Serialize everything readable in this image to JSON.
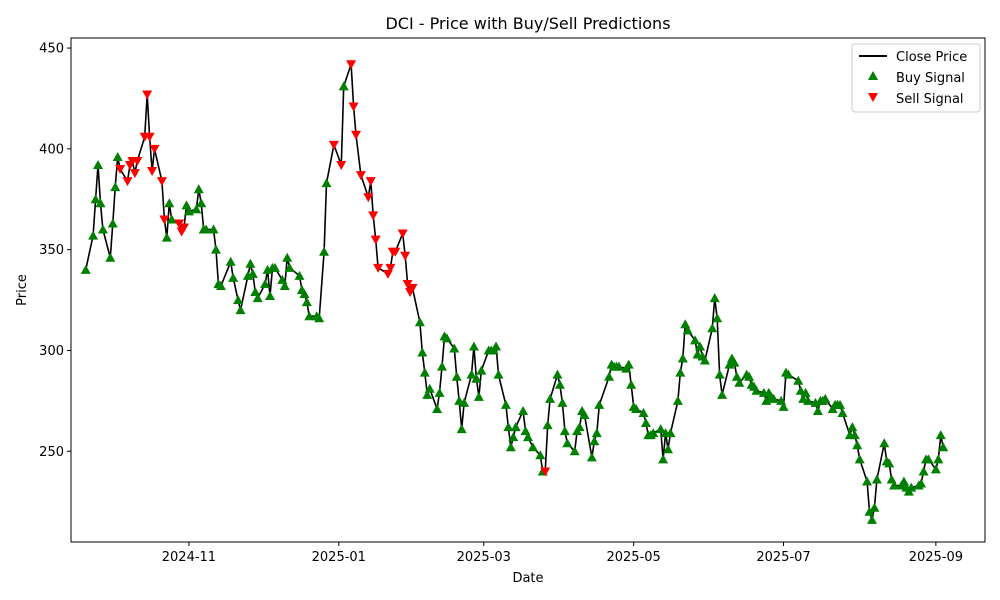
{
  "chart_data": {
    "type": "line",
    "title": "DCI - Price with Buy/Sell Predictions",
    "xlabel": "Date",
    "ylabel": "Price",
    "xlim": [
      "2024-09-14",
      "2025-09-21"
    ],
    "ylim": [
      205,
      455
    ],
    "x_ticks": [
      {
        "date": "2024-11-01",
        "label": "2024-11"
      },
      {
        "date": "2025-01-01",
        "label": "2025-01"
      },
      {
        "date": "2025-03-01",
        "label": "2025-03"
      },
      {
        "date": "2025-05-01",
        "label": "2025-05"
      },
      {
        "date": "2025-07-01",
        "label": "2025-07"
      },
      {
        "date": "2025-09-01",
        "label": "2025-09"
      }
    ],
    "y_ticks": [
      250,
      300,
      350,
      400,
      450
    ],
    "grid": false,
    "legend_position": "top-right",
    "series": [
      {
        "name": "Close Price",
        "kind": "line",
        "color": "#000000"
      },
      {
        "name": "Buy Signal",
        "kind": "marker",
        "marker": "triangle-up",
        "color": "#008000"
      },
      {
        "name": "Sell Signal",
        "kind": "marker",
        "marker": "triangle-down",
        "color": "#ff0000"
      }
    ],
    "points": [
      [
        "2024-09-20",
        340,
        "B"
      ],
      [
        "2024-09-23",
        357,
        "B"
      ],
      [
        "2024-09-24",
        375,
        "B"
      ],
      [
        "2024-09-25",
        392,
        "B"
      ],
      [
        "2024-09-26",
        373,
        "B"
      ],
      [
        "2024-09-27",
        360,
        "B"
      ],
      [
        "2024-09-30",
        346,
        "B"
      ],
      [
        "2024-10-01",
        363,
        "B"
      ],
      [
        "2024-10-02",
        381,
        "B"
      ],
      [
        "2024-10-03",
        396,
        "B"
      ],
      [
        "2024-10-04",
        390,
        "S"
      ],
      [
        "2024-10-07",
        384,
        "S"
      ],
      [
        "2024-10-08",
        392,
        "S"
      ],
      [
        "2024-10-09",
        394,
        "S"
      ],
      [
        "2024-10-10",
        388,
        "S"
      ],
      [
        "2024-10-11",
        394,
        "S"
      ],
      [
        "2024-10-14",
        406,
        "S"
      ],
      [
        "2024-10-15",
        427,
        "S"
      ],
      [
        "2024-10-16",
        406,
        "S"
      ],
      [
        "2024-10-17",
        389,
        "S"
      ],
      [
        "2024-10-18",
        400,
        "S"
      ],
      [
        "2024-10-21",
        384,
        "S"
      ],
      [
        "2024-10-22",
        365,
        "S"
      ],
      [
        "2024-10-23",
        356,
        "B"
      ],
      [
        "2024-10-24",
        373,
        "B"
      ],
      [
        "2024-10-25",
        365,
        "B"
      ],
      [
        "2024-10-28",
        363,
        "S"
      ],
      [
        "2024-10-29",
        359,
        "S"
      ],
      [
        "2024-10-30",
        361,
        "S"
      ],
      [
        "2024-10-31",
        372,
        "B"
      ],
      [
        "2024-11-01",
        369,
        "B"
      ],
      [
        "2024-11-04",
        370,
        "B"
      ],
      [
        "2024-11-05",
        380,
        "B"
      ],
      [
        "2024-11-06",
        373,
        "B"
      ],
      [
        "2024-11-07",
        360,
        "B"
      ],
      [
        "2024-11-08",
        360,
        "B"
      ],
      [
        "2024-11-11",
        360,
        "B"
      ],
      [
        "2024-11-12",
        350,
        "B"
      ],
      [
        "2024-11-13",
        333,
        "B"
      ],
      [
        "2024-11-14",
        332,
        "B"
      ],
      [
        "2024-11-18",
        344,
        "B"
      ],
      [
        "2024-11-19",
        336,
        "B"
      ],
      [
        "2024-11-21",
        325,
        "B"
      ],
      [
        "2024-11-22",
        320,
        "B"
      ],
      [
        "2024-11-25",
        337,
        "B"
      ],
      [
        "2024-11-26",
        343,
        "B"
      ],
      [
        "2024-11-27",
        338,
        "B"
      ],
      [
        "2024-11-28",
        329,
        "B"
      ],
      [
        "2024-11-29",
        326,
        "B"
      ],
      [
        "2024-12-02",
        333,
        "B"
      ],
      [
        "2024-12-03",
        340,
        "B"
      ],
      [
        "2024-12-04",
        327,
        "B"
      ],
      [
        "2024-12-05",
        341,
        "B"
      ],
      [
        "2024-12-06",
        341,
        "B"
      ],
      [
        "2024-12-09",
        335,
        "B"
      ],
      [
        "2024-12-10",
        332,
        "B"
      ],
      [
        "2024-12-11",
        346,
        "B"
      ],
      [
        "2024-12-12",
        341,
        "B"
      ],
      [
        "2024-12-16",
        337,
        "B"
      ],
      [
        "2024-12-17",
        330,
        "B"
      ],
      [
        "2024-12-18",
        328,
        "B"
      ],
      [
        "2024-12-19",
        324,
        "B"
      ],
      [
        "2024-12-20",
        317,
        "B"
      ],
      [
        "2024-12-23",
        317,
        "B"
      ],
      [
        "2024-12-24",
        316,
        "B"
      ],
      [
        "2024-12-26",
        349,
        "B"
      ],
      [
        "2024-12-27",
        383,
        "B"
      ],
      [
        "2024-12-30",
        402,
        "S"
      ],
      [
        "2025-01-02",
        392,
        "S"
      ],
      [
        "2025-01-03",
        431,
        "B"
      ],
      [
        "2025-01-06",
        442,
        "S"
      ],
      [
        "2025-01-07",
        421,
        "S"
      ],
      [
        "2025-01-08",
        407,
        "S"
      ],
      [
        "2025-01-10",
        387,
        "S"
      ],
      [
        "2025-01-13",
        376,
        "S"
      ],
      [
        "2025-01-14",
        384,
        "S"
      ],
      [
        "2025-01-15",
        367,
        "S"
      ],
      [
        "2025-01-16",
        355,
        "S"
      ],
      [
        "2025-01-17",
        341,
        "S"
      ],
      [
        "2025-01-21",
        338,
        "S"
      ],
      [
        "2025-01-22",
        341,
        "S"
      ],
      [
        "2025-01-23",
        349,
        "S"
      ],
      [
        "2025-01-24",
        349,
        "S"
      ],
      [
        "2025-01-27",
        358,
        "S"
      ],
      [
        "2025-01-28",
        347,
        "S"
      ],
      [
        "2025-01-29",
        333,
        "S"
      ],
      [
        "2025-01-30",
        329,
        "S"
      ],
      [
        "2025-01-31",
        331,
        "S"
      ],
      [
        "2025-02-03",
        314,
        "B"
      ],
      [
        "2025-02-04",
        299,
        "B"
      ],
      [
        "2025-02-05",
        289,
        "B"
      ],
      [
        "2025-02-06",
        278,
        "B"
      ],
      [
        "2025-02-07",
        281,
        "B"
      ],
      [
        "2025-02-10",
        271,
        "B"
      ],
      [
        "2025-02-11",
        279,
        "B"
      ],
      [
        "2025-02-12",
        292,
        "B"
      ],
      [
        "2025-02-13",
        307,
        "B"
      ],
      [
        "2025-02-14",
        306,
        "B"
      ],
      [
        "2025-02-17",
        301,
        "B"
      ],
      [
        "2025-02-18",
        287,
        "B"
      ],
      [
        "2025-02-19",
        275,
        "B"
      ],
      [
        "2025-02-20",
        261,
        "B"
      ],
      [
        "2025-02-21",
        274,
        "B"
      ],
      [
        "2025-02-24",
        288,
        "B"
      ],
      [
        "2025-02-25",
        302,
        "B"
      ],
      [
        "2025-02-26",
        286,
        "B"
      ],
      [
        "2025-02-27",
        277,
        "B"
      ],
      [
        "2025-02-28",
        290,
        "B"
      ],
      [
        "2025-03-03",
        300,
        "B"
      ],
      [
        "2025-03-04",
        300,
        "B"
      ],
      [
        "2025-03-05",
        300,
        "B"
      ],
      [
        "2025-03-06",
        302,
        "B"
      ],
      [
        "2025-03-07",
        288,
        "B"
      ],
      [
        "2025-03-10",
        273,
        "B"
      ],
      [
        "2025-03-11",
        262,
        "B"
      ],
      [
        "2025-03-12",
        252,
        "B"
      ],
      [
        "2025-03-13",
        257,
        "B"
      ],
      [
        "2025-03-14",
        262,
        "B"
      ],
      [
        "2025-03-17",
        270,
        "B"
      ],
      [
        "2025-03-18",
        260,
        "B"
      ],
      [
        "2025-03-19",
        257,
        "B"
      ],
      [
        "2025-03-21",
        252,
        "B"
      ],
      [
        "2025-03-24",
        248,
        "B"
      ],
      [
        "2025-03-25",
        240,
        "B"
      ],
      [
        "2025-03-26",
        240,
        "S"
      ],
      [
        "2025-03-27",
        263,
        "B"
      ],
      [
        "2025-03-28",
        276,
        "B"
      ],
      [
        "2025-03-31",
        288,
        "B"
      ],
      [
        "2025-04-01",
        283,
        "B"
      ],
      [
        "2025-04-02",
        274,
        "B"
      ],
      [
        "2025-04-03",
        260,
        "B"
      ],
      [
        "2025-04-04",
        254,
        "B"
      ],
      [
        "2025-04-07",
        250,
        "B"
      ],
      [
        "2025-04-08",
        260,
        "B"
      ],
      [
        "2025-04-09",
        262,
        "B"
      ],
      [
        "2025-04-10",
        270,
        "B"
      ],
      [
        "2025-04-11",
        268,
        "B"
      ],
      [
        "2025-04-14",
        247,
        "B"
      ],
      [
        "2025-04-15",
        255,
        "B"
      ],
      [
        "2025-04-16",
        259,
        "B"
      ],
      [
        "2025-04-17",
        273,
        "B"
      ],
      [
        "2025-04-21",
        287,
        "B"
      ],
      [
        "2025-04-22",
        293,
        "B"
      ],
      [
        "2025-04-23",
        292,
        "B"
      ],
      [
        "2025-04-24",
        292,
        "B"
      ],
      [
        "2025-04-25",
        292,
        "B"
      ],
      [
        "2025-04-28",
        291,
        "B"
      ],
      [
        "2025-04-29",
        293,
        "B"
      ],
      [
        "2025-04-30",
        283,
        "B"
      ],
      [
        "2025-05-01",
        272,
        "B"
      ],
      [
        "2025-05-02",
        271,
        "B"
      ],
      [
        "2025-05-05",
        269,
        "B"
      ],
      [
        "2025-05-06",
        264,
        "B"
      ],
      [
        "2025-05-07",
        258,
        "B"
      ],
      [
        "2025-05-08",
        258,
        "B"
      ],
      [
        "2025-05-09",
        259,
        "B"
      ],
      [
        "2025-05-12",
        261,
        "B"
      ],
      [
        "2025-05-13",
        246,
        "B"
      ],
      [
        "2025-05-14",
        259,
        "B"
      ],
      [
        "2025-05-15",
        251,
        "B"
      ],
      [
        "2025-05-16",
        259,
        "B"
      ],
      [
        "2025-05-19",
        275,
        "B"
      ],
      [
        "2025-05-20",
        289,
        "B"
      ],
      [
        "2025-05-21",
        296,
        "B"
      ],
      [
        "2025-05-22",
        313,
        "B"
      ],
      [
        "2025-05-23",
        310,
        "B"
      ],
      [
        "2025-05-26",
        305,
        "B"
      ],
      [
        "2025-05-27",
        298,
        "B"
      ],
      [
        "2025-05-28",
        302,
        "B"
      ],
      [
        "2025-05-29",
        297,
        "B"
      ],
      [
        "2025-05-30",
        295,
        "B"
      ],
      [
        "2025-06-02",
        311,
        "B"
      ],
      [
        "2025-06-03",
        326,
        "B"
      ],
      [
        "2025-06-04",
        316,
        "B"
      ],
      [
        "2025-06-05",
        288,
        "B"
      ],
      [
        "2025-06-06",
        278,
        "B"
      ],
      [
        "2025-06-09",
        293,
        "B"
      ],
      [
        "2025-06-10",
        296,
        "B"
      ],
      [
        "2025-06-11",
        294,
        "B"
      ],
      [
        "2025-06-12",
        287,
        "B"
      ],
      [
        "2025-06-13",
        284,
        "B"
      ],
      [
        "2025-06-16",
        288,
        "B"
      ],
      [
        "2025-06-17",
        287,
        "B"
      ],
      [
        "2025-06-18",
        283,
        "B"
      ],
      [
        "2025-06-19",
        282,
        "B"
      ],
      [
        "2025-06-20",
        280,
        "B"
      ],
      [
        "2025-06-23",
        279,
        "B"
      ],
      [
        "2025-06-24",
        275,
        "B"
      ],
      [
        "2025-06-25",
        279,
        "B"
      ],
      [
        "2025-06-26",
        277,
        "B"
      ],
      [
        "2025-06-27",
        276,
        "B"
      ],
      [
        "2025-06-30",
        275,
        "B"
      ],
      [
        "2025-07-01",
        272,
        "B"
      ],
      [
        "2025-07-02",
        289,
        "B"
      ],
      [
        "2025-07-03",
        288,
        "B"
      ],
      [
        "2025-07-07",
        285,
        "B"
      ],
      [
        "2025-07-08",
        280,
        "B"
      ],
      [
        "2025-07-09",
        276,
        "B"
      ],
      [
        "2025-07-10",
        279,
        "B"
      ],
      [
        "2025-07-11",
        275,
        "B"
      ],
      [
        "2025-07-14",
        274,
        "B"
      ],
      [
        "2025-07-15",
        270,
        "B"
      ],
      [
        "2025-07-16",
        275,
        "B"
      ],
      [
        "2025-07-17",
        275,
        "B"
      ],
      [
        "2025-07-18",
        276,
        "B"
      ],
      [
        "2025-07-21",
        271,
        "B"
      ],
      [
        "2025-07-22",
        273,
        "B"
      ],
      [
        "2025-07-23",
        273,
        "B"
      ],
      [
        "2025-07-24",
        273,
        "B"
      ],
      [
        "2025-07-25",
        269,
        "B"
      ],
      [
        "2025-07-28",
        258,
        "B"
      ],
      [
        "2025-07-29",
        262,
        "B"
      ],
      [
        "2025-07-30",
        258,
        "B"
      ],
      [
        "2025-07-31",
        253,
        "B"
      ],
      [
        "2025-08-01",
        246,
        "B"
      ],
      [
        "2025-08-04",
        235,
        "B"
      ],
      [
        "2025-08-05",
        220,
        "B"
      ],
      [
        "2025-08-06",
        216,
        "B"
      ],
      [
        "2025-08-07",
        222,
        "B"
      ],
      [
        "2025-08-08",
        236,
        "B"
      ],
      [
        "2025-08-11",
        254,
        "B"
      ],
      [
        "2025-08-12",
        245,
        "B"
      ],
      [
        "2025-08-13",
        244,
        "B"
      ],
      [
        "2025-08-14",
        236,
        "B"
      ],
      [
        "2025-08-15",
        233,
        "B"
      ],
      [
        "2025-08-18",
        233,
        "B"
      ],
      [
        "2025-08-19",
        235,
        "B"
      ],
      [
        "2025-08-20",
        232,
        "B"
      ],
      [
        "2025-08-21",
        230,
        "B"
      ],
      [
        "2025-08-22",
        232,
        "B"
      ],
      [
        "2025-08-25",
        233,
        "B"
      ],
      [
        "2025-08-26",
        234,
        "B"
      ],
      [
        "2025-08-27",
        240,
        "B"
      ],
      [
        "2025-08-28",
        246,
        "B"
      ],
      [
        "2025-08-29",
        246,
        "B"
      ],
      [
        "2025-09-01",
        241,
        "B"
      ],
      [
        "2025-09-02",
        246,
        "B"
      ],
      [
        "2025-09-03",
        258,
        "B"
      ],
      [
        "2025-09-04",
        252,
        "B"
      ]
    ]
  }
}
